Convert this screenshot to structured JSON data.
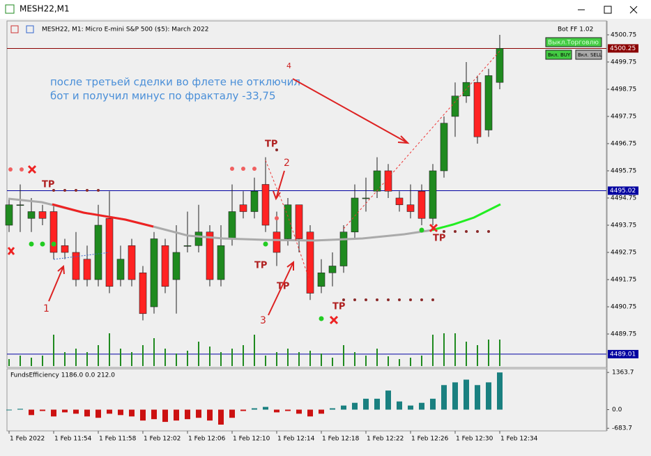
{
  "window": {
    "title": "MESH22,M1"
  },
  "chart": {
    "header": "MESH22, M1:  Micro E-mini S&P 500 ($5): March 2022",
    "bot_label": "Bot FF 1.02",
    "buttons": [
      "Выкл.Торговлю",
      "Вкл. BUY",
      "Вкл. SELL"
    ],
    "ylim": [
      4488.52,
      4501.21
    ],
    "yticks": [
      4500.75,
      4499.75,
      4498.75,
      4497.75,
      4496.75,
      4495.75,
      4494.75,
      4493.75,
      4492.75,
      4491.75,
      4490.75,
      4489.75
    ],
    "levels": [
      {
        "value": 4500.25,
        "color": "#8b0000"
      },
      {
        "value": 4495.02,
        "color": "#0000a0"
      },
      {
        "value": 4489.01,
        "color": "#0000a0"
      }
    ],
    "time_labels": [
      "1 Feb 2022",
      "1 Feb 11:54",
      "1 Feb 11:58",
      "1 Feb 12:02",
      "1 Feb 12:06",
      "1 Feb 12:10",
      "1 Feb 12:14",
      "1 Feb 12:18",
      "1 Feb 12:22",
      "1 Feb 12:26",
      "1 Feb 12:30",
      "1 Feb 12:34"
    ],
    "up_color": "#1f8a1f",
    "down_color": "#ff2222",
    "candles": [
      [
        4493.75,
        4494.75,
        4493.5,
        4494.5
      ],
      [
        4494.5,
        4495.25,
        4493.5,
        4494.5
      ],
      [
        4494.0,
        4494.75,
        4493.5,
        4494.25
      ],
      [
        4494.25,
        4494.5,
        4493.75,
        4494.0
      ],
      [
        4494.25,
        4494.5,
        4492.5,
        4492.75
      ],
      [
        4493.0,
        4493.25,
        4492.5,
        4492.75
      ],
      [
        4492.75,
        4493.5,
        4491.5,
        4491.75
      ],
      [
        4492.5,
        4493.0,
        4491.5,
        4491.75
      ],
      [
        4491.75,
        4494.5,
        4491.5,
        4493.75
      ],
      [
        4494.0,
        4495.0,
        4491.25,
        4491.5
      ],
      [
        4491.75,
        4493.0,
        4491.5,
        4492.5
      ],
      [
        4493.0,
        4493.25,
        4491.5,
        4491.75
      ],
      [
        4492.0,
        4492.25,
        4490.25,
        4490.5
      ],
      [
        4490.75,
        4493.5,
        4490.5,
        4493.25
      ],
      [
        4493.0,
        4493.25,
        4491.25,
        4491.5
      ],
      [
        4491.75,
        4493.75,
        4490.5,
        4492.75
      ],
      [
        4493.0,
        4494.25,
        4492.75,
        4493.0
      ],
      [
        4493.0,
        4494.5,
        4492.75,
        4493.5
      ],
      [
        4493.5,
        4493.75,
        4491.5,
        4491.75
      ],
      [
        4491.75,
        4493.75,
        4491.5,
        4493.0
      ],
      [
        4493.25,
        4495.25,
        4493.0,
        4494.25
      ],
      [
        4494.5,
        4495.0,
        4494.0,
        4494.25
      ],
      [
        4494.25,
        4495.5,
        4494.0,
        4495.0
      ],
      [
        4495.25,
        4496.25,
        4493.5,
        4493.75
      ],
      [
        4493.5,
        4494.25,
        4492.25,
        4492.75
      ],
      [
        4493.25,
        4494.75,
        4493.0,
        4494.5
      ],
      [
        4494.5,
        4494.5,
        4492.75,
        4493.25
      ],
      [
        4493.5,
        4493.75,
        4491.0,
        4491.25
      ],
      [
        4491.5,
        4492.5,
        4491.25,
        4492.0
      ],
      [
        4492.0,
        4492.75,
        4491.5,
        4492.25
      ],
      [
        4492.25,
        4493.75,
        4492.0,
        4493.5
      ],
      [
        4493.5,
        4495.25,
        4493.25,
        4494.75
      ],
      [
        4494.75,
        4495.5,
        4494.25,
        4494.75
      ],
      [
        4495.0,
        4496.25,
        4494.75,
        4495.75
      ],
      [
        4495.75,
        4496.0,
        4494.75,
        4495.0
      ],
      [
        4494.75,
        4495.0,
        4494.25,
        4494.5
      ],
      [
        4494.5,
        4495.25,
        4494.0,
        4494.25
      ],
      [
        4495.0,
        4495.25,
        4493.75,
        4494.0
      ],
      [
        4494.0,
        4496.0,
        4493.75,
        4495.75
      ],
      [
        4495.75,
        4497.75,
        4495.5,
        4497.5
      ],
      [
        4497.75,
        4499.0,
        4497.0,
        4498.5
      ],
      [
        4498.5,
        4499.75,
        4498.25,
        4499.0
      ],
      [
        4499.0,
        4499.25,
        4496.75,
        4497.0
      ],
      [
        4497.25,
        4499.5,
        4497.0,
        4499.25
      ],
      [
        4499.0,
        4500.75,
        4498.75,
        4500.25
      ]
    ],
    "volumes": [
      10,
      15,
      12,
      15,
      45,
      20,
      25,
      20,
      30,
      47,
      25,
      20,
      30,
      40,
      25,
      18,
      22,
      35,
      28,
      20,
      25,
      30,
      45,
      15,
      20,
      25,
      20,
      22,
      18,
      12,
      30,
      20,
      15,
      25,
      14,
      10,
      12,
      15,
      45,
      47,
      47,
      35,
      30,
      38,
      38
    ],
    "volume_color": "#1f8a1f",
    "tp_labels": [
      "TP",
      "TP",
      "TP",
      "TP",
      "TP",
      "TP"
    ],
    "annotation": [
      "после третьей сделки во флете не отключил",
      "бот и получил минус по фракталу -33,75"
    ],
    "marks": [
      "1",
      "2",
      "3",
      "4"
    ]
  },
  "indicator": {
    "label": "FundsEfficiency 1186.0 0.0 212.0",
    "ylim": [
      -780,
      1470
    ],
    "yticks": [
      1363.7,
      {
        "value": 0,
        "label": "0.0"
      },
      -683.7
    ],
    "pos_color": "#1a8080",
    "neg_color": "#cc1111",
    "values": [
      0,
      30,
      -200,
      -50,
      -250,
      -100,
      -150,
      -250,
      -300,
      -150,
      -200,
      -250,
      -400,
      -350,
      -450,
      -400,
      -350,
      -300,
      -400,
      -550,
      -300,
      -50,
      50,
      100,
      -100,
      -50,
      -150,
      -250,
      -150,
      50,
      150,
      250,
      400,
      400,
      700,
      300,
      150,
      250,
      400,
      900,
      1000,
      1100,
      900,
      1000,
      1363.7
    ]
  }
}
